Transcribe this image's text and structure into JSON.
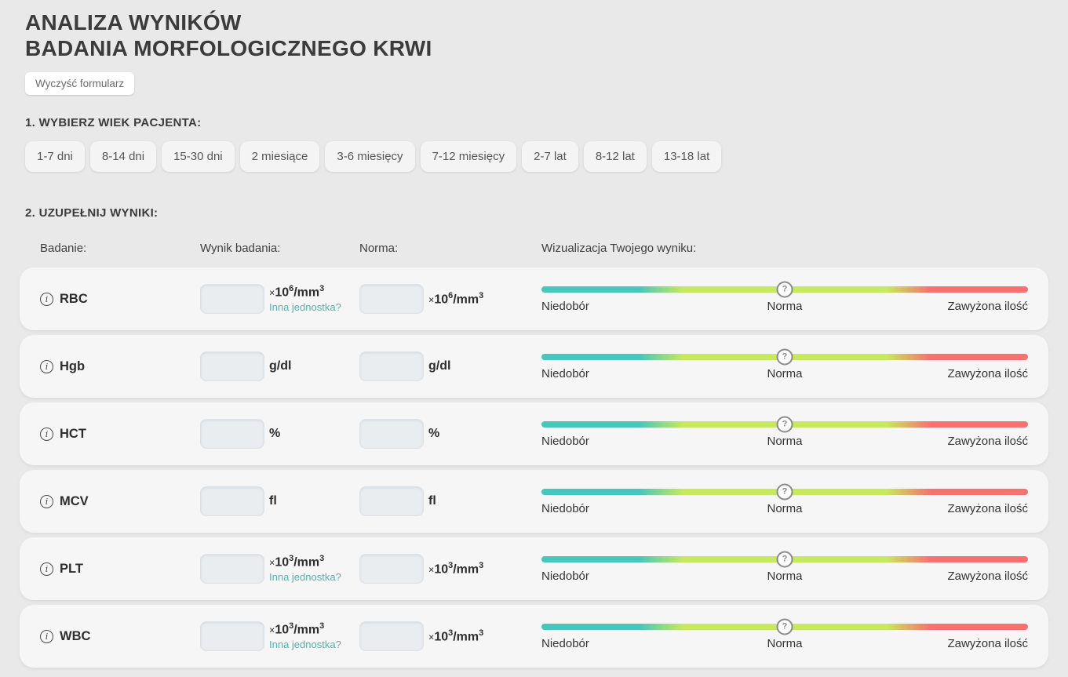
{
  "page": {
    "title_line1": "ANALIZA WYNIKÓW",
    "title_line2": "BADANIA MORFOLOGICZNEGO KRWI",
    "clear_button_label": "Wyczyść formularz"
  },
  "age_section": {
    "heading": "1. WYBIERZ WIEK PACJENTA:",
    "options": [
      "1-7 dni",
      "8-14 dni",
      "15-30 dni",
      "2 miesiące",
      "3-6 miesięcy",
      "7-12 miesięcy",
      "2-7 lat",
      "8-12 lat",
      "13-18 lat"
    ]
  },
  "results_section": {
    "heading": "2. UZUPEŁNIJ WYNIKI:",
    "columns": {
      "test": "Badanie:",
      "result": "Wynik badania:",
      "norm": "Norma:",
      "visualization": "Wizualizacja Twojego wyniku:"
    },
    "other_unit_label": "Inna jednostka?",
    "scale": {
      "low": "Niedobór",
      "normal": "Norma",
      "high": "Zawyżona ilość",
      "tooltip_icon": "?",
      "info_icon": "i"
    },
    "rows": [
      {
        "label": "RBC",
        "unit": [
          [
            "times",
            "×"
          ],
          [
            "text",
            "10"
          ],
          [
            "sup",
            "6"
          ],
          [
            "text",
            "/mm"
          ],
          [
            "sup",
            "3"
          ]
        ],
        "other_unit": true,
        "result_value": "",
        "norm_value": ""
      },
      {
        "label": "Hgb",
        "unit": [
          [
            "text",
            "g/dl"
          ]
        ],
        "other_unit": false,
        "result_value": "",
        "norm_value": ""
      },
      {
        "label": "HCT",
        "unit": [
          [
            "text",
            "%"
          ]
        ],
        "other_unit": false,
        "result_value": "",
        "norm_value": ""
      },
      {
        "label": "MCV",
        "unit": [
          [
            "text",
            "fl"
          ]
        ],
        "other_unit": false,
        "result_value": "",
        "norm_value": ""
      },
      {
        "label": "PLT",
        "unit": [
          [
            "times",
            "×"
          ],
          [
            "text",
            "10"
          ],
          [
            "sup",
            "3"
          ],
          [
            "text",
            "/mm"
          ],
          [
            "sup",
            "3"
          ]
        ],
        "other_unit": true,
        "result_value": "",
        "norm_value": ""
      },
      {
        "label": "WBC",
        "unit": [
          [
            "times",
            "×"
          ],
          [
            "text",
            "10"
          ],
          [
            "sup",
            "3"
          ],
          [
            "text",
            "/mm"
          ],
          [
            "sup",
            "3"
          ]
        ],
        "other_unit": true,
        "result_value": "",
        "norm_value": ""
      }
    ]
  },
  "colors": {
    "background": "#e9e9e9",
    "card": "#f6f6f7",
    "bar_teal": "#45c7bc",
    "bar_green": "#c6e95e",
    "bar_red": "#f8716e",
    "accent_teal": "#4db6ac"
  }
}
